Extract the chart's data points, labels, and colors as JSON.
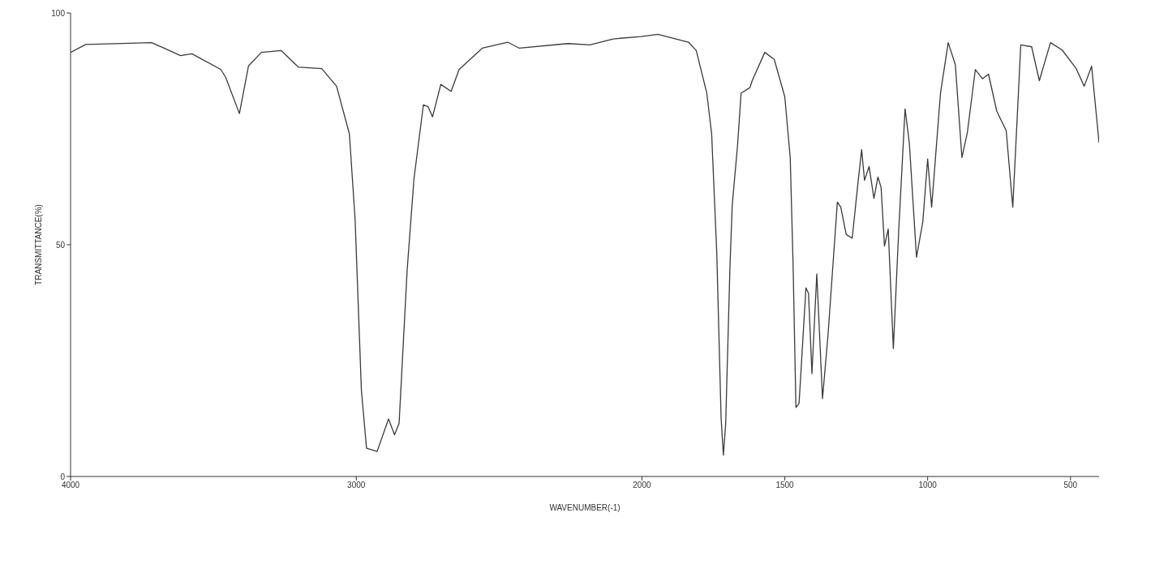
{
  "chart_data": {
    "type": "line",
    "xlabel": "WAVENUMBER(-1)",
    "ylabel": "TRANSMITTANCE(%)",
    "xlim": [
      4000,
      400
    ],
    "ylim": [
      0,
      100
    ],
    "xticks": [
      4000,
      3000,
      2000,
      1500,
      1000,
      500
    ],
    "yticks": [
      0,
      50,
      100
    ],
    "x": [
      4000,
      3947,
      3717,
      3676,
      3615,
      3575,
      3474,
      3457,
      3409,
      3377,
      3332,
      3263,
      3202,
      3121,
      3069,
      3024,
      3004,
      2982,
      2964,
      2927,
      2887,
      2866,
      2850,
      2822,
      2798,
      2765,
      2749,
      2733,
      2704,
      2668,
      2640,
      2559,
      2470,
      2429,
      2259,
      2182,
      2101,
      2004,
      1944,
      1837,
      1810,
      1773,
      1756,
      1738,
      1723,
      1715,
      1707,
      1692,
      1684,
      1665,
      1653,
      1622,
      1614,
      1570,
      1537,
      1500,
      1481,
      1471,
      1461,
      1450,
      1426,
      1417,
      1405,
      1388,
      1368,
      1349,
      1316,
      1304,
      1285,
      1264,
      1245,
      1231,
      1221,
      1205,
      1188,
      1174,
      1163,
      1151,
      1138,
      1120,
      1101,
      1079,
      1064,
      1039,
      1017,
      1000,
      986,
      955,
      928,
      903,
      880,
      861,
      833,
      808,
      787,
      758,
      725,
      702,
      674,
      636,
      609,
      570,
      529,
      481,
      452,
      426,
      400
    ],
    "series": [
      {
        "color": "#3a3a3a",
        "values": [
          91.5,
          93.2,
          93.6,
          92.5,
          90.8,
          91.2,
          87.8,
          86.1,
          78.3,
          88.6,
          91.5,
          91.9,
          88.3,
          88.0,
          84.2,
          73.9,
          55.4,
          18.6,
          6.1,
          5.4,
          12.4,
          9.0,
          11.5,
          44.4,
          64.2,
          80.2,
          79.8,
          77.6,
          84.6,
          83.1,
          87.8,
          92.4,
          93.7,
          92.4,
          93.4,
          93.1,
          94.4,
          94.9,
          95.4,
          93.7,
          91.9,
          82.7,
          73.9,
          48.1,
          12.7,
          4.6,
          11.2,
          45.1,
          58.5,
          71.7,
          82.7,
          83.9,
          85.4,
          91.5,
          90.0,
          81.9,
          68.8,
          45.8,
          14.9,
          15.8,
          40.7,
          39.5,
          22.2,
          43.7,
          16.8,
          30.3,
          59.2,
          58.1,
          52.2,
          51.4,
          62.7,
          70.5,
          63.9,
          66.9,
          60.0,
          64.6,
          62.4,
          49.7,
          53.4,
          27.6,
          53.4,
          79.3,
          71.9,
          47.3,
          54.9,
          68.5,
          58.1,
          82.7,
          93.6,
          88.8,
          68.8,
          74.2,
          87.8,
          85.8,
          86.8,
          78.8,
          74.6,
          58.1,
          93.1,
          92.7,
          85.4,
          93.6,
          92.0,
          88.1,
          84.2,
          88.5,
          72.0
        ]
      }
    ]
  }
}
